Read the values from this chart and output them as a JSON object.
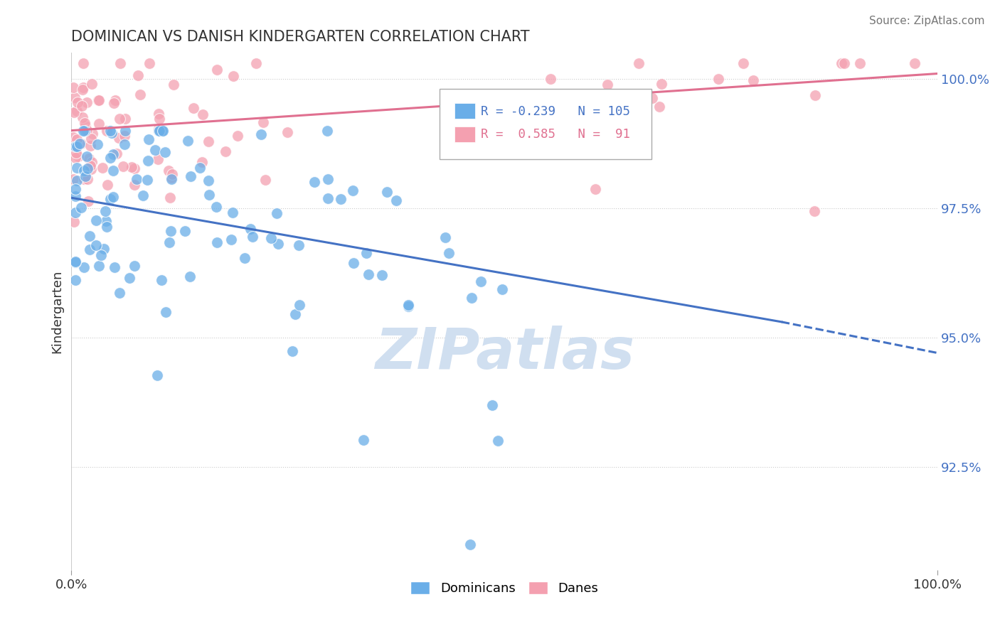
{
  "title": "DOMINICAN VS DANISH KINDERGARTEN CORRELATION CHART",
  "source": "Source: ZipAtlas.com",
  "ylabel": "Kindergarten",
  "dominicans_R": -0.239,
  "dominicans_N": 105,
  "danes_R": 0.585,
  "danes_N": 91,
  "blue_color": "#6aaee8",
  "pink_color": "#f4a0b0",
  "blue_line_color": "#4472C4",
  "pink_line_color": "#e07090",
  "watermark": "ZIPatlas",
  "watermark_color": "#d0dff0",
  "legend_blue_label": "Dominicans",
  "legend_pink_label": "Danes",
  "xlim": [
    0.0,
    1.0
  ],
  "ylim": [
    0.905,
    1.005
  ],
  "ytick_vals": [
    0.925,
    0.95,
    0.975,
    1.0
  ],
  "ytick_labels": [
    "92.5%",
    "95.0%",
    "97.5%",
    "100.0%"
  ],
  "blue_trend_x0": 0.0,
  "blue_trend_y0": 0.977,
  "blue_trend_x1": 0.82,
  "blue_trend_y1": 0.953,
  "blue_trend_dash_x0": 0.82,
  "blue_trend_dash_y0": 0.953,
  "blue_trend_dash_x1": 1.0,
  "blue_trend_dash_y1": 0.947,
  "pink_trend_x0": 0.0,
  "pink_trend_y0": 0.99,
  "pink_trend_x1": 1.0,
  "pink_trend_y1": 1.001
}
